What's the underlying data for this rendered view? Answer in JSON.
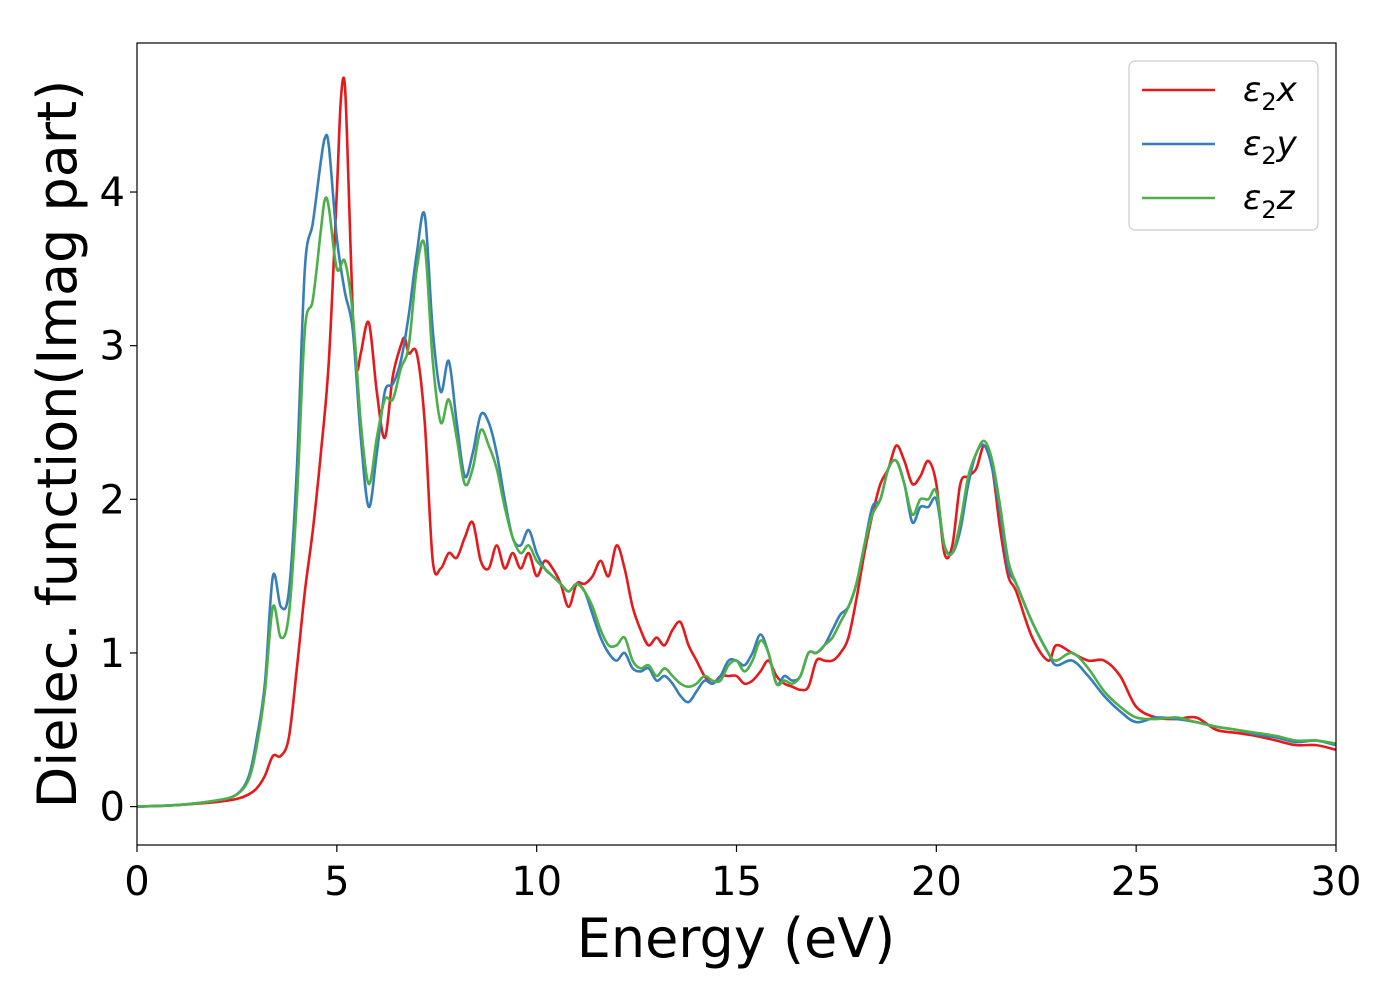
{
  "chart_data": {
    "type": "line",
    "title": "",
    "xlabel": "Energy (eV)",
    "ylabel": "Dielec. function(Imag part)",
    "xlim": [
      0,
      30
    ],
    "ylim": [
      -0.25,
      4.97
    ],
    "xticks": [
      0,
      5,
      10,
      15,
      20,
      25,
      30
    ],
    "yticks": [
      0,
      1,
      2,
      3,
      4
    ],
    "grid": false,
    "legend_position": "top-right",
    "series": [
      {
        "name": "ε₂x",
        "legend_main": "ε",
        "legend_sub": "2",
        "legend_suffix": "x",
        "color": "#e41a1c",
        "x": [
          0,
          1,
          2,
          2.5,
          2.8,
          3.0,
          3.2,
          3.4,
          3.6,
          3.8,
          4.0,
          4.2,
          4.4,
          4.6,
          4.8,
          5.0,
          5.1,
          5.2,
          5.3,
          5.4,
          5.5,
          5.6,
          5.8,
          6.0,
          6.2,
          6.4,
          6.6,
          6.7,
          6.8,
          7.0,
          7.2,
          7.4,
          7.6,
          7.8,
          8.0,
          8.2,
          8.4,
          8.6,
          8.8,
          9.0,
          9.2,
          9.4,
          9.6,
          9.8,
          10.0,
          10.2,
          10.4,
          10.6,
          10.8,
          11.0,
          11.2,
          11.4,
          11.6,
          11.8,
          12.0,
          12.2,
          12.4,
          12.6,
          12.8,
          13.0,
          13.2,
          13.4,
          13.6,
          13.8,
          14.0,
          14.2,
          14.4,
          14.6,
          14.8,
          15.0,
          15.2,
          15.4,
          15.6,
          15.8,
          16.0,
          16.2,
          16.4,
          16.6,
          16.8,
          17.0,
          17.2,
          17.4,
          17.6,
          17.8,
          18.0,
          18.2,
          18.4,
          18.6,
          18.8,
          19.0,
          19.2,
          19.4,
          19.6,
          19.8,
          20.0,
          20.2,
          20.4,
          20.6,
          20.8,
          21.0,
          21.2,
          21.4,
          21.6,
          21.8,
          22.0,
          22.4,
          22.8,
          23.0,
          23.4,
          23.8,
          24.2,
          24.6,
          25.0,
          25.5,
          26.0,
          26.5,
          27.0,
          27.5,
          28.0,
          28.5,
          29.0,
          29.5,
          30.0
        ],
        "values": [
          0,
          0.01,
          0.03,
          0.05,
          0.08,
          0.12,
          0.2,
          0.33,
          0.33,
          0.45,
          0.9,
          1.4,
          1.8,
          2.3,
          2.9,
          4.0,
          4.6,
          4.7,
          4.0,
          3.2,
          2.85,
          2.95,
          3.15,
          2.7,
          2.4,
          2.8,
          3.0,
          3.05,
          2.95,
          2.95,
          2.5,
          1.6,
          1.55,
          1.65,
          1.62,
          1.75,
          1.85,
          1.6,
          1.55,
          1.7,
          1.55,
          1.65,
          1.55,
          1.65,
          1.5,
          1.6,
          1.55,
          1.45,
          1.3,
          1.45,
          1.45,
          1.5,
          1.6,
          1.5,
          1.7,
          1.55,
          1.3,
          1.15,
          1.05,
          1.1,
          1.05,
          1.15,
          1.2,
          1.05,
          0.95,
          0.85,
          0.8,
          0.85,
          0.85,
          0.85,
          0.8,
          0.82,
          0.88,
          0.95,
          0.85,
          0.8,
          0.78,
          0.76,
          0.78,
          0.95,
          0.95,
          0.95,
          1.0,
          1.1,
          1.35,
          1.65,
          1.9,
          2.1,
          2.2,
          2.35,
          2.25,
          2.1,
          2.15,
          2.25,
          2.1,
          1.65,
          1.7,
          2.1,
          2.15,
          2.2,
          2.35,
          2.2,
          1.8,
          1.5,
          1.4,
          1.1,
          0.95,
          1.05,
          1.0,
          0.95,
          0.95,
          0.85,
          0.65,
          0.58,
          0.57,
          0.58,
          0.5,
          0.48,
          0.46,
          0.43,
          0.4,
          0.4,
          0.37
        ]
      },
      {
        "name": "ε₂y",
        "legend_main": "ε",
        "legend_sub": "2",
        "legend_suffix": "y",
        "color": "#377eb8",
        "x": [
          0,
          1,
          2,
          2.5,
          2.8,
          3.0,
          3.2,
          3.4,
          3.6,
          3.8,
          4.0,
          4.2,
          4.4,
          4.6,
          4.7,
          4.8,
          5.0,
          5.2,
          5.4,
          5.6,
          5.8,
          6.0,
          6.2,
          6.4,
          6.6,
          6.8,
          7.0,
          7.2,
          7.4,
          7.6,
          7.8,
          8.0,
          8.2,
          8.4,
          8.6,
          8.8,
          9.0,
          9.2,
          9.4,
          9.6,
          9.8,
          10.0,
          10.2,
          10.4,
          10.6,
          10.8,
          11.0,
          11.2,
          11.4,
          11.6,
          11.8,
          12.0,
          12.2,
          12.4,
          12.6,
          12.8,
          13.0,
          13.2,
          13.4,
          13.6,
          13.8,
          14.0,
          14.2,
          14.4,
          14.6,
          14.8,
          15.0,
          15.2,
          15.4,
          15.6,
          15.8,
          16.0,
          16.2,
          16.4,
          16.6,
          16.8,
          17.0,
          17.2,
          17.4,
          17.6,
          17.8,
          18.0,
          18.2,
          18.4,
          18.6,
          18.8,
          19.0,
          19.2,
          19.4,
          19.6,
          19.8,
          20.0,
          20.2,
          20.4,
          20.6,
          20.8,
          21.0,
          21.2,
          21.4,
          21.6,
          21.8,
          22.0,
          22.4,
          22.8,
          23.0,
          23.4,
          23.8,
          24.2,
          24.6,
          25.0,
          25.5,
          26.0,
          26.5,
          27.0,
          27.5,
          28.0,
          28.5,
          29.0,
          29.5,
          30.0
        ],
        "values": [
          0,
          0.01,
          0.04,
          0.08,
          0.2,
          0.45,
          0.8,
          1.5,
          1.3,
          1.4,
          2.2,
          3.5,
          3.8,
          4.2,
          4.35,
          4.3,
          3.7,
          3.35,
          3.1,
          2.4,
          1.95,
          2.3,
          2.7,
          2.75,
          2.9,
          3.2,
          3.6,
          3.85,
          3.1,
          2.7,
          2.9,
          2.5,
          2.15,
          2.3,
          2.55,
          2.5,
          2.3,
          2.0,
          1.75,
          1.7,
          1.8,
          1.65,
          1.55,
          1.5,
          1.45,
          1.4,
          1.45,
          1.4,
          1.25,
          1.1,
          1.0,
          0.95,
          1.0,
          0.9,
          0.88,
          0.9,
          0.82,
          0.85,
          0.8,
          0.72,
          0.68,
          0.75,
          0.82,
          0.8,
          0.85,
          0.95,
          0.95,
          0.92,
          1.0,
          1.12,
          1.0,
          0.8,
          0.85,
          0.82,
          0.85,
          1.0,
          1.0,
          1.05,
          1.15,
          1.25,
          1.3,
          1.45,
          1.7,
          1.95,
          2.0,
          2.2,
          2.25,
          2.1,
          1.85,
          1.95,
          1.95,
          2.0,
          1.7,
          1.65,
          1.8,
          2.1,
          2.3,
          2.35,
          2.2,
          1.9,
          1.55,
          1.45,
          1.2,
          1.0,
          0.92,
          0.95,
          0.85,
          0.72,
          0.62,
          0.55,
          0.58,
          0.57,
          0.55,
          0.52,
          0.5,
          0.47,
          0.45,
          0.42,
          0.43,
          0.4
        ]
      },
      {
        "name": "ε₂z",
        "legend_main": "ε",
        "legend_sub": "2",
        "legend_suffix": "z",
        "color": "#4daf4a",
        "x": [
          0,
          1,
          2,
          2.5,
          2.8,
          3.0,
          3.2,
          3.4,
          3.6,
          3.8,
          4.0,
          4.2,
          4.4,
          4.6,
          4.7,
          4.8,
          5.0,
          5.2,
          5.4,
          5.6,
          5.8,
          6.0,
          6.2,
          6.4,
          6.6,
          6.8,
          7.0,
          7.2,
          7.4,
          7.6,
          7.8,
          8.0,
          8.2,
          8.4,
          8.6,
          8.8,
          9.0,
          9.2,
          9.4,
          9.6,
          9.8,
          10.0,
          10.2,
          10.4,
          10.6,
          10.8,
          11.0,
          11.2,
          11.4,
          11.6,
          11.8,
          12.0,
          12.2,
          12.4,
          12.6,
          12.8,
          13.0,
          13.2,
          13.4,
          13.6,
          13.8,
          14.0,
          14.2,
          14.4,
          14.6,
          14.8,
          15.0,
          15.2,
          15.4,
          15.6,
          15.8,
          16.0,
          16.2,
          16.4,
          16.6,
          16.8,
          17.0,
          17.2,
          17.4,
          17.6,
          17.8,
          18.0,
          18.2,
          18.4,
          18.6,
          18.8,
          19.0,
          19.2,
          19.4,
          19.6,
          19.8,
          20.0,
          20.2,
          20.4,
          20.6,
          20.8,
          21.0,
          21.2,
          21.4,
          21.6,
          21.8,
          22.0,
          22.4,
          22.8,
          23.0,
          23.4,
          23.8,
          24.2,
          24.6,
          25.0,
          25.5,
          26.0,
          26.5,
          27.0,
          27.5,
          28.0,
          28.5,
          29.0,
          29.5,
          30.0
        ],
        "values": [
          0,
          0.01,
          0.04,
          0.08,
          0.18,
          0.4,
          0.75,
          1.3,
          1.1,
          1.25,
          2.0,
          3.1,
          3.3,
          3.75,
          3.95,
          3.9,
          3.5,
          3.55,
          3.2,
          2.5,
          2.1,
          2.4,
          2.65,
          2.65,
          2.85,
          3.0,
          3.5,
          3.65,
          2.9,
          2.5,
          2.65,
          2.4,
          2.1,
          2.2,
          2.45,
          2.35,
          2.2,
          1.95,
          1.75,
          1.65,
          1.7,
          1.6,
          1.55,
          1.5,
          1.45,
          1.4,
          1.45,
          1.4,
          1.3,
          1.15,
          1.05,
          1.05,
          1.1,
          0.95,
          0.9,
          0.92,
          0.85,
          0.9,
          0.85,
          0.8,
          0.78,
          0.8,
          0.85,
          0.82,
          0.82,
          0.92,
          0.95,
          0.88,
          0.95,
          1.08,
          1.0,
          0.8,
          0.82,
          0.8,
          0.85,
          1.0,
          1.0,
          1.05,
          1.1,
          1.2,
          1.3,
          1.45,
          1.7,
          1.9,
          2.0,
          2.2,
          2.25,
          2.1,
          1.9,
          2.0,
          2.0,
          2.05,
          1.7,
          1.65,
          1.85,
          2.15,
          2.3,
          2.38,
          2.25,
          1.95,
          1.6,
          1.45,
          1.2,
          1.0,
          0.95,
          1.0,
          0.9,
          0.75,
          0.65,
          0.58,
          0.57,
          0.58,
          0.55,
          0.52,
          0.5,
          0.48,
          0.46,
          0.43,
          0.43,
          0.41
        ]
      }
    ]
  }
}
